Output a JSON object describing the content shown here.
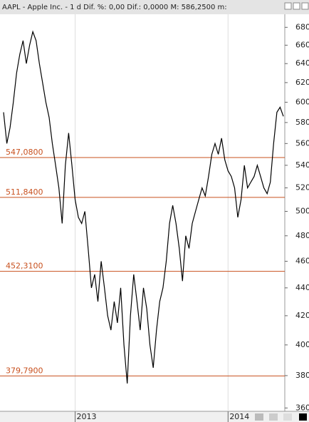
{
  "chart_data": {
    "type": "line",
    "log_scale": true,
    "title": "AAPL - Apple Inc. -  1 d Dif. %: 0,00 Dif.: 0,0000 M: 586,2500 m:",
    "values": [
      590,
      560,
      575,
      600,
      630,
      650,
      665,
      640,
      660,
      675,
      665,
      640,
      620,
      600,
      585,
      560,
      540,
      520,
      490,
      540,
      570,
      540,
      510,
      495,
      490,
      500,
      470,
      440,
      450,
      430,
      460,
      440,
      420,
      410,
      430,
      415,
      440,
      400,
      375,
      420,
      450,
      430,
      410,
      440,
      425,
      400,
      385,
      410,
      430,
      440,
      460,
      490,
      505,
      490,
      470,
      445,
      480,
      470,
      490,
      500,
      510,
      520,
      513,
      530,
      550,
      560,
      550,
      565,
      545,
      535,
      530,
      520,
      495,
      510,
      540,
      520,
      525,
      530,
      540,
      530,
      520,
      515,
      525,
      560,
      590,
      595,
      586
    ],
    "color": "#000000",
    "ylim": [
      358,
      695
    ],
    "yticks": [
      360,
      380,
      400,
      420,
      440,
      460,
      480,
      500,
      520,
      540,
      560,
      580,
      600,
      620,
      640,
      660,
      680
    ],
    "xticks": [
      {
        "value": 22,
        "label": "2013"
      },
      {
        "value": 69,
        "label": "2014"
      }
    ],
    "levels": [
      {
        "value": 547.08,
        "label": "547,0800"
      },
      {
        "value": 511.84,
        "label": "511,8400"
      },
      {
        "value": 452.31,
        "label": "452,3100"
      },
      {
        "value": 379.79,
        "label": "379,7900"
      }
    ],
    "level_color": "#c8501e"
  }
}
